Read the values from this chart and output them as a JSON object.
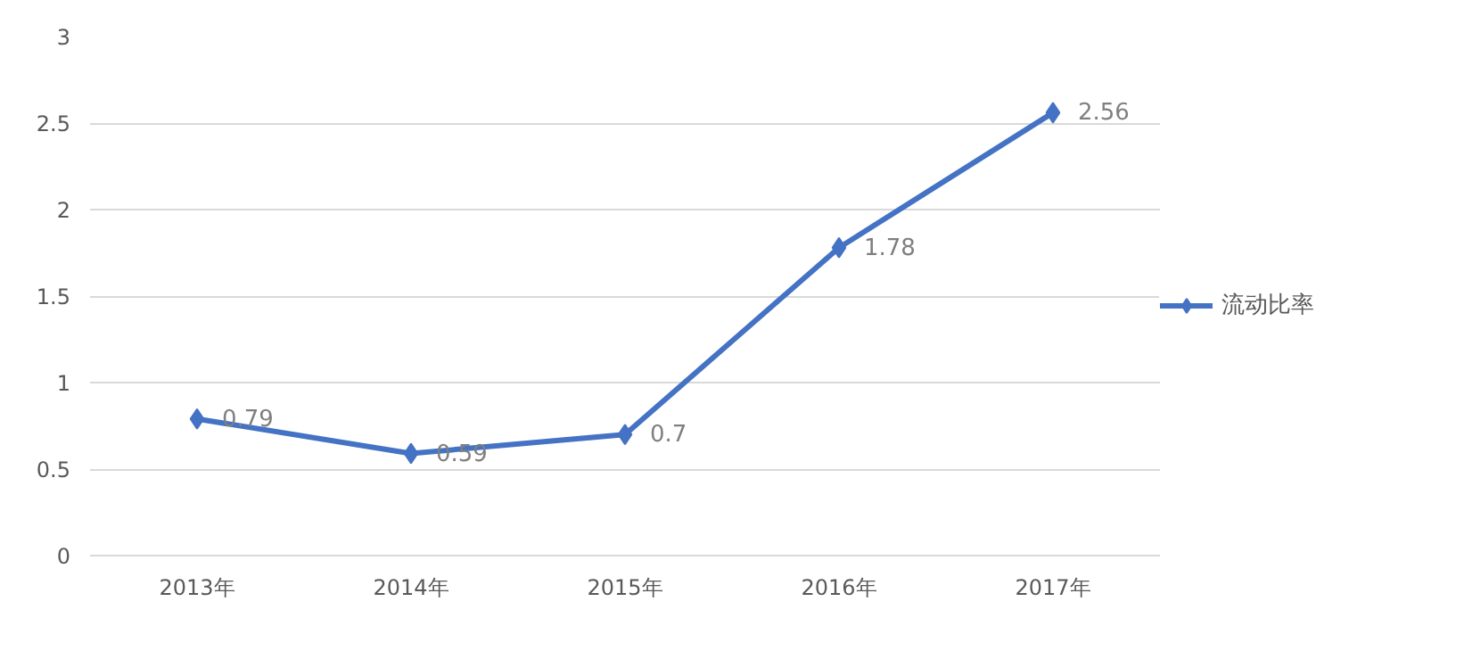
{
  "chart_data": {
    "type": "line",
    "categories": [
      "2013年",
      "2014年",
      "2015年",
      "2016年",
      "2017年"
    ],
    "series": [
      {
        "name": "流动比率",
        "color": "#4472c4",
        "values": [
          0.79,
          0.59,
          0.7,
          1.78,
          2.56
        ]
      }
    ],
    "ylim": [
      0,
      3
    ],
    "yticks": [
      0,
      0.5,
      1,
      1.5,
      2,
      2.5,
      3
    ],
    "grid": "y",
    "legend": "right",
    "marker": "diamond",
    "line_style": "solid",
    "data_labels": true
  }
}
